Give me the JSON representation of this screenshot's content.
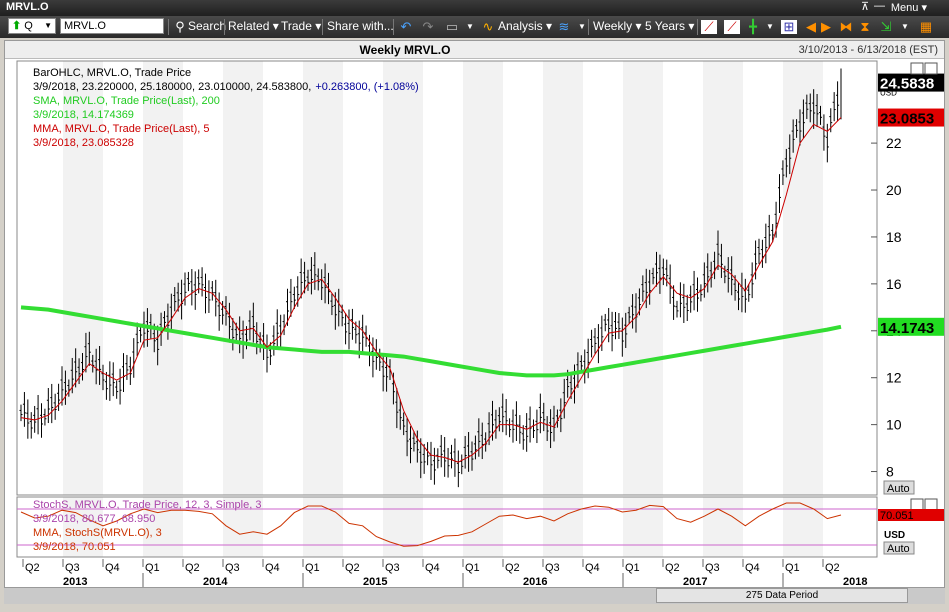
{
  "window": {
    "title": "MRVL.O",
    "menu_label": "Menu",
    "pin_icon": "pin-icon",
    "minimize_icon": "minimize-icon"
  },
  "toolbar": {
    "symbol_type": "Q",
    "symbol_value": "MRVL.O",
    "search_label": "Search",
    "related_label": "Related",
    "trade_label": "Trade",
    "share_label": "Share with...",
    "analysis_label": "Analysis",
    "interval_label": "Weekly",
    "period_label": "5 Years"
  },
  "chart_header": {
    "title": "Weekly MRVL.O",
    "range": "3/10/2013 - 6/13/2018 (EST)"
  },
  "legend": {
    "bar_name": "BarOHLC, MRVL.O, Trade Price",
    "bar_values_prefix": "3/9/2018, 23.220000, 25.180000, 23.010000, 24.583800,",
    "bar_change": "+0.263800, (+1.08%)",
    "sma_name": "SMA, MRVL.O, Trade Price(Last),  200",
    "sma_value": "3/9/2018, 14.174369",
    "mma_name": "MMA, MRVL.O, Trade Price(Last),  5",
    "mma_value": "3/9/2018, 23.085328"
  },
  "price_panel": {
    "axis_ticks": [
      "8",
      "10",
      "12",
      "14",
      "16",
      "18",
      "20",
      "22"
    ],
    "last_price_tag": "24.5838",
    "mma_tag": "23.0853",
    "sma_tag": "14.1743",
    "currency_label": "USD",
    "auto_label": "Auto"
  },
  "stoch_panel": {
    "legend_name": "StochS, MRVL.O, Trade Price,  12, 3, Simple, 3",
    "legend_value": "3/9/2018, 80.677, 68.950",
    "mma_name": "MMA, StochS(MRVL.O),  3",
    "mma_value": "3/9/2018, 70.051",
    "tag_value": "70.051",
    "currency_label": "USD",
    "auto_label": "Auto"
  },
  "x_axis": {
    "quarter_labels": [
      "Q2",
      "Q3",
      "Q4",
      "Q1",
      "Q2",
      "Q3",
      "Q4",
      "Q1",
      "Q2",
      "Q3",
      "Q4",
      "Q1",
      "Q2",
      "Q3",
      "Q4",
      "Q1",
      "Q2",
      "Q3",
      "Q4",
      "Q1",
      "Q2"
    ],
    "year_labels": [
      "2013",
      "2014",
      "2015",
      "2016",
      "2017",
      "2018"
    ]
  },
  "status": {
    "data_period": "275 Data Period"
  },
  "colors": {
    "sma": "#33dd33",
    "mma": "#cc0000",
    "stoch": "#cc66cc",
    "bars": "#000000",
    "stoch_mma": "#cc3300"
  },
  "chart_data": {
    "type": "line",
    "title": "Weekly MRVL.O",
    "xlabel": "",
    "ylabel": "",
    "ylim": [
      7,
      25.5
    ],
    "grid": true,
    "x": [
      "2013-03",
      "2013-04",
      "2013-05",
      "2013-06",
      "2013-07",
      "2013-08",
      "2013-09",
      "2013-10",
      "2013-11",
      "2013-12",
      "2014-01",
      "2014-02",
      "2014-03",
      "2014-04",
      "2014-05",
      "2014-06",
      "2014-07",
      "2014-08",
      "2014-09",
      "2014-10",
      "2014-11",
      "2014-12",
      "2015-01",
      "2015-02",
      "2015-03",
      "2015-04",
      "2015-05",
      "2015-06",
      "2015-07",
      "2015-08",
      "2015-09",
      "2015-10",
      "2015-11",
      "2015-12",
      "2016-01",
      "2016-02",
      "2016-03",
      "2016-04",
      "2016-05",
      "2016-06",
      "2016-07",
      "2016-08",
      "2016-09",
      "2016-10",
      "2016-11",
      "2016-12",
      "2017-01",
      "2017-02",
      "2017-03",
      "2017-04",
      "2017-05",
      "2017-06",
      "2017-07",
      "2017-08",
      "2017-09",
      "2017-10",
      "2017-11",
      "2017-12",
      "2018-01",
      "2018-02",
      "2018-03"
    ],
    "series": [
      {
        "name": "BarOHLC, MRVL.O, Trade Price",
        "values": [
          10.5,
          10.1,
          10.6,
          11.4,
          12.2,
          13.1,
          12.0,
          11.6,
          12.5,
          14.3,
          13.6,
          14.9,
          15.8,
          16.0,
          15.5,
          14.6,
          13.6,
          14.2,
          13.0,
          14.1,
          15.6,
          16.4,
          16.2,
          15.0,
          14.1,
          13.8,
          12.8,
          12.1,
          9.8,
          8.9,
          8.4,
          8.7,
          8.3,
          8.9,
          9.5,
          10.4,
          10.0,
          9.6,
          10.3,
          9.8,
          11.5,
          12.4,
          13.5,
          14.3,
          13.9,
          15.0,
          16.1,
          16.7,
          15.0,
          15.3,
          16.0,
          17.2,
          16.1,
          15.3,
          17.3,
          18.2,
          21.3,
          22.9,
          23.7,
          22.2,
          24.6
        ]
      },
      {
        "name": "SMA, MRVL.O, Trade Price(Last),  200",
        "values": [
          15.0,
          14.95,
          14.9,
          14.8,
          14.7,
          14.6,
          14.5,
          14.4,
          14.3,
          14.2,
          14.1,
          14.0,
          13.9,
          13.8,
          13.7,
          13.6,
          13.5,
          13.4,
          13.3,
          13.25,
          13.2,
          13.15,
          13.1,
          13.1,
          13.1,
          13.05,
          13.0,
          12.95,
          12.9,
          12.8,
          12.7,
          12.6,
          12.5,
          12.4,
          12.3,
          12.2,
          12.15,
          12.1,
          12.1,
          12.1,
          12.15,
          12.25,
          12.35,
          12.45,
          12.55,
          12.65,
          12.75,
          12.85,
          12.95,
          13.05,
          13.15,
          13.25,
          13.35,
          13.45,
          13.55,
          13.65,
          13.75,
          13.85,
          13.95,
          14.05,
          14.17
        ]
      },
      {
        "name": "MMA, MRVL.O, Trade Price(Last),  5",
        "values": [
          10.3,
          10.2,
          10.4,
          11.0,
          11.8,
          12.6,
          12.2,
          11.9,
          12.2,
          13.6,
          13.7,
          14.5,
          15.4,
          15.8,
          15.6,
          14.9,
          14.0,
          14.1,
          13.3,
          13.8,
          15.0,
          16.0,
          16.2,
          15.4,
          14.5,
          14.0,
          13.1,
          12.4,
          10.6,
          9.4,
          8.7,
          8.6,
          8.4,
          8.7,
          9.2,
          10.0,
          10.0,
          9.8,
          10.1,
          9.9,
          11.0,
          12.0,
          13.0,
          13.9,
          14.0,
          14.6,
          15.6,
          16.3,
          15.6,
          15.4,
          15.8,
          16.8,
          16.4,
          15.7,
          16.8,
          17.8,
          19.8,
          22.0,
          22.8,
          22.5,
          23.09
        ]
      },
      {
        "name": "StochS, MRVL.O, Trade Price,  12, 3, Simple, 3",
        "values": [
          80,
          60,
          70,
          85,
          75,
          55,
          45,
          65,
          80,
          85,
          70,
          80,
          78,
          76,
          70,
          40,
          30,
          45,
          35,
          60,
          85,
          90,
          85,
          70,
          45,
          50,
          25,
          20,
          15,
          20,
          30,
          40,
          35,
          45,
          60,
          75,
          70,
          60,
          70,
          55,
          80,
          85,
          88,
          82,
          70,
          80,
          90,
          82,
          50,
          55,
          75,
          85,
          60,
          45,
          75,
          85,
          95,
          90,
          75,
          55,
          80.7
        ]
      },
      {
        "name": "MMA, StochS(MRVL.O),  3",
        "values": [
          75,
          65,
          68,
          78,
          74,
          62,
          52,
          60,
          72,
          80,
          74,
          78,
          78,
          76,
          72,
          52,
          38,
          42,
          38,
          52,
          74,
          85,
          85,
          75,
          56,
          52,
          34,
          25,
          18,
          19,
          26,
          35,
          36,
          42,
          55,
          68,
          70,
          64,
          68,
          60,
          72,
          80,
          85,
          83,
          75,
          78,
          86,
          84,
          64,
          58,
          68,
          80,
          68,
          52,
          68,
          80,
          90,
          90,
          80,
          64,
          70.05
        ]
      }
    ],
    "stoch_ylim": [
      0,
      100
    ]
  }
}
